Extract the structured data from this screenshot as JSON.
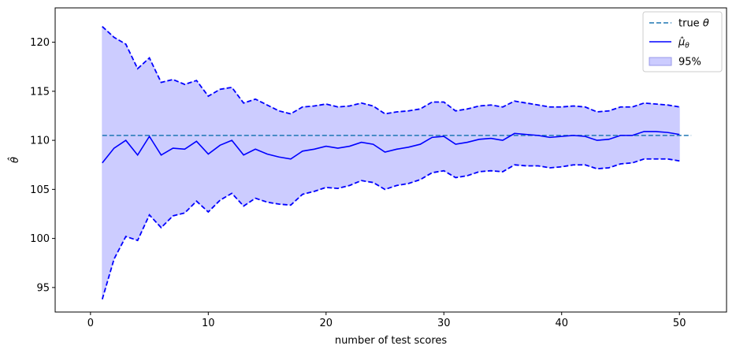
{
  "chart_data": {
    "type": "line",
    "xlabel": "number of test scores",
    "ylabel": "θ̂",
    "xlim": [
      -3,
      54
    ],
    "ylim": [
      92.5,
      123.5
    ],
    "xticks": [
      0,
      10,
      20,
      30,
      40,
      50
    ],
    "yticks": [
      95,
      100,
      105,
      110,
      115,
      120
    ],
    "grid": false,
    "legend_placement": "top-right",
    "colors": {
      "true_line": "#1f77b4",
      "mean_line": "#0000ff",
      "band_fill": "#ccccff",
      "band_edge": "#0000ff"
    },
    "legend": [
      {
        "key": "true",
        "prefix": "true ",
        "math": "θ"
      },
      {
        "key": "mean",
        "math": "μ̂",
        "sub": "θ"
      },
      {
        "key": "band",
        "label": "95%"
      }
    ],
    "true_theta": {
      "x": [
        1,
        51
      ],
      "y": [
        110.5,
        110.5
      ]
    },
    "x": [
      1,
      2,
      3,
      4,
      5,
      6,
      7,
      8,
      9,
      10,
      11,
      12,
      13,
      14,
      15,
      16,
      17,
      18,
      19,
      20,
      21,
      22,
      23,
      24,
      25,
      26,
      27,
      28,
      29,
      30,
      31,
      32,
      33,
      34,
      35,
      36,
      37,
      38,
      39,
      40,
      41,
      42,
      43,
      44,
      45,
      46,
      47,
      48,
      49,
      50
    ],
    "mean": [
      107.7,
      109.2,
      110.0,
      108.5,
      110.4,
      108.5,
      109.2,
      109.1,
      109.9,
      108.6,
      109.5,
      110.0,
      108.5,
      109.1,
      108.6,
      108.3,
      108.1,
      108.9,
      109.1,
      109.4,
      109.2,
      109.4,
      109.8,
      109.6,
      108.8,
      109.1,
      109.3,
      109.6,
      110.3,
      110.4,
      109.6,
      109.8,
      110.1,
      110.2,
      110.0,
      110.7,
      110.6,
      110.5,
      110.3,
      110.4,
      110.5,
      110.4,
      110.0,
      110.1,
      110.5,
      110.5,
      110.9,
      110.9,
      110.8,
      110.6
    ],
    "upper": [
      121.6,
      120.5,
      119.8,
      117.3,
      118.4,
      115.9,
      116.2,
      115.7,
      116.1,
      114.5,
      115.2,
      115.4,
      113.8,
      114.2,
      113.6,
      113.0,
      112.7,
      113.4,
      113.5,
      113.7,
      113.4,
      113.5,
      113.8,
      113.5,
      112.7,
      112.9,
      113.0,
      113.2,
      113.9,
      113.9,
      113.0,
      113.2,
      113.5,
      113.6,
      113.4,
      114.0,
      113.8,
      113.6,
      113.4,
      113.4,
      113.5,
      113.4,
      112.9,
      113.0,
      113.4,
      113.4,
      113.8,
      113.7,
      113.6,
      113.4
    ],
    "lower": [
      93.8,
      97.9,
      100.2,
      99.8,
      102.4,
      101.1,
      102.3,
      102.6,
      103.8,
      102.7,
      103.9,
      104.6,
      103.3,
      104.1,
      103.7,
      103.5,
      103.4,
      104.5,
      104.8,
      105.2,
      105.1,
      105.4,
      105.9,
      105.7,
      105.0,
      105.4,
      105.6,
      106.0,
      106.7,
      106.9,
      106.2,
      106.4,
      106.8,
      106.9,
      106.8,
      107.5,
      107.4,
      107.4,
      107.2,
      107.3,
      107.5,
      107.5,
      107.1,
      107.2,
      107.6,
      107.7,
      108.1,
      108.1,
      108.1,
      107.9
    ]
  }
}
